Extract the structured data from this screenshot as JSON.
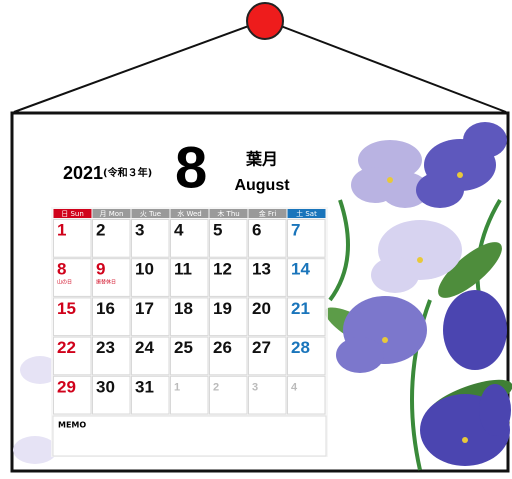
{
  "header": {
    "year": "2021",
    "era": "(令和３年)",
    "month": "8",
    "month_jp": "葉月",
    "month_en": "August"
  },
  "weekdays": [
    "日 Sun",
    "月 Mon",
    "火 Tue",
    "水 Wed",
    "木 Thu",
    "金 Fri",
    "土 Sat"
  ],
  "weeks": [
    [
      {
        "day": "1"
      },
      {
        "day": "2"
      },
      {
        "day": "3"
      },
      {
        "day": "4"
      },
      {
        "day": "5"
      },
      {
        "day": "6"
      },
      {
        "day": "7"
      }
    ],
    [
      {
        "day": "8",
        "note": "山の日",
        "style": "holiday"
      },
      {
        "day": "9",
        "note": "振替休日",
        "style": "holiday"
      },
      {
        "day": "10"
      },
      {
        "day": "11"
      },
      {
        "day": "12"
      },
      {
        "day": "13"
      },
      {
        "day": "14"
      }
    ],
    [
      {
        "day": "15"
      },
      {
        "day": "16"
      },
      {
        "day": "17"
      },
      {
        "day": "18"
      },
      {
        "day": "19"
      },
      {
        "day": "20"
      },
      {
        "day": "21"
      }
    ],
    [
      {
        "day": "22"
      },
      {
        "day": "23"
      },
      {
        "day": "24"
      },
      {
        "day": "25"
      },
      {
        "day": "26"
      },
      {
        "day": "27"
      },
      {
        "day": "28"
      }
    ],
    [
      {
        "day": "29"
      },
      {
        "day": "30"
      },
      {
        "day": "31"
      },
      {
        "day": "1",
        "style": "other-month"
      },
      {
        "day": "2",
        "style": "other-month"
      },
      {
        "day": "3",
        "style": "other-month"
      },
      {
        "day": "4",
        "style": "other-month"
      }
    ]
  ],
  "memo": "MEMO"
}
